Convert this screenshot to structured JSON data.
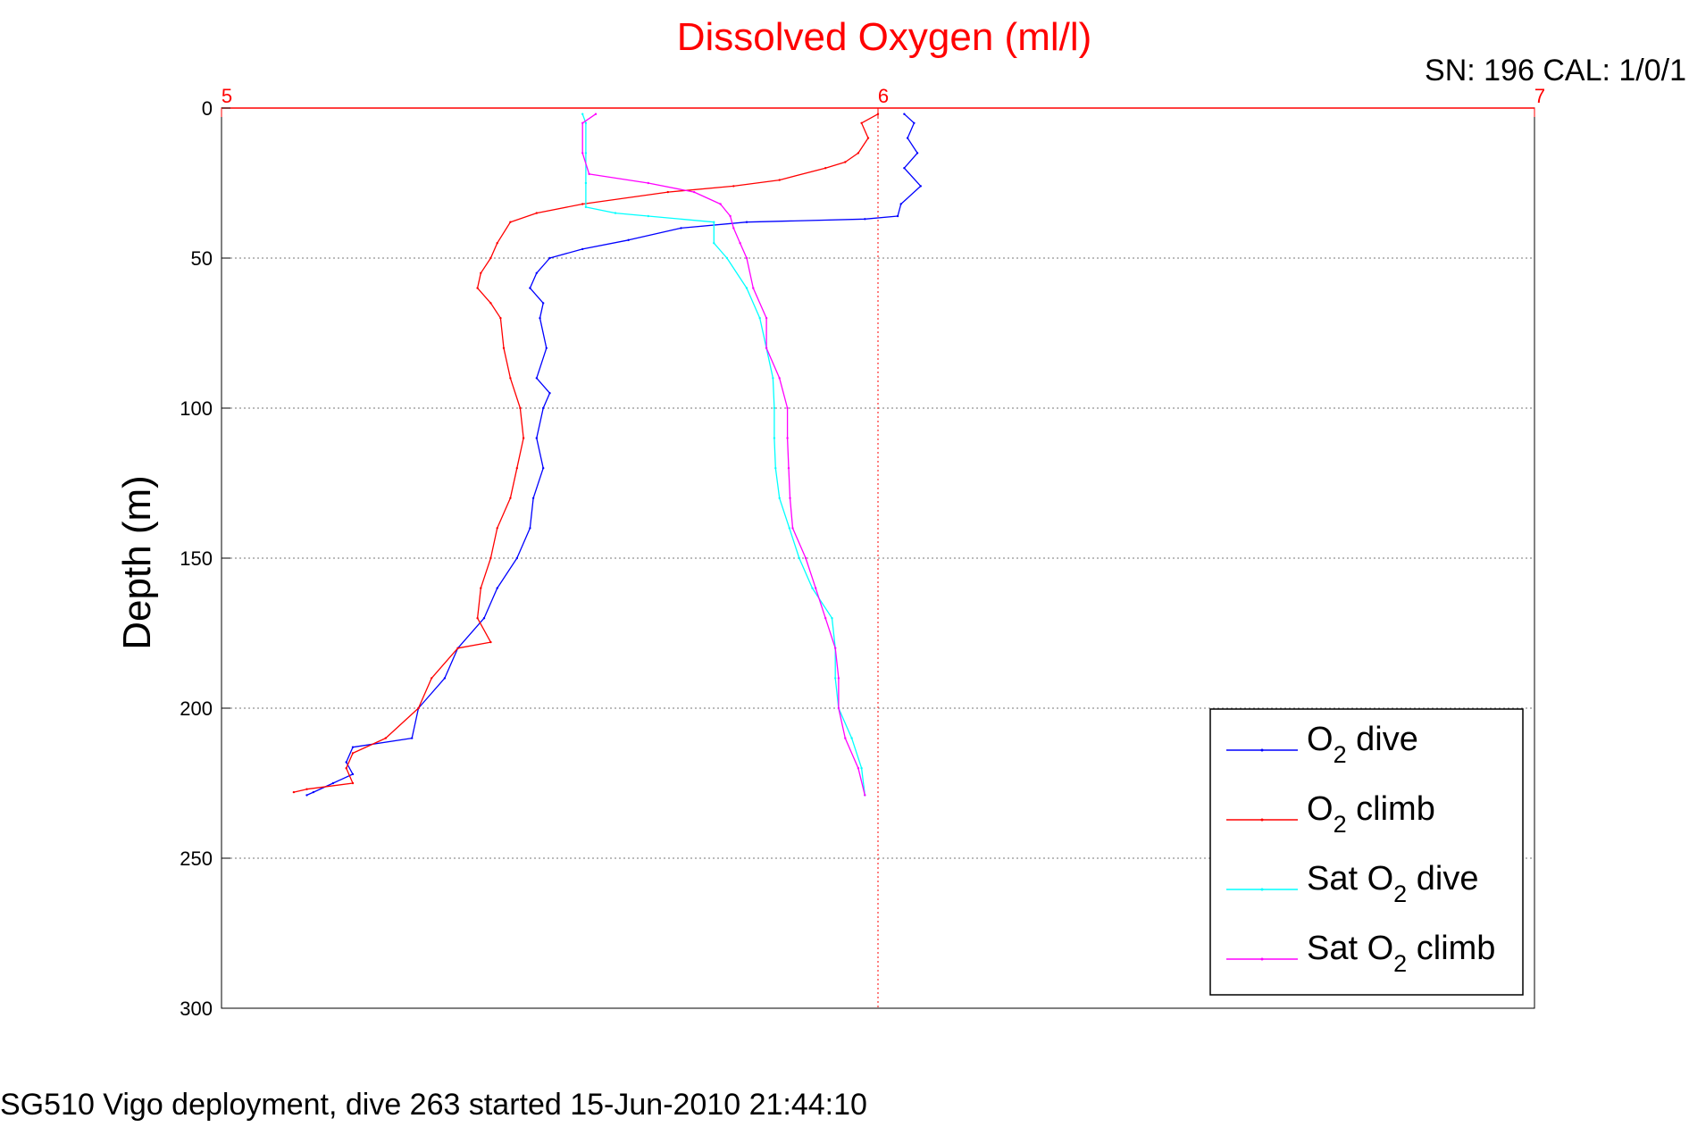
{
  "chart_data": {
    "type": "line",
    "title": "Dissolved Oxygen (ml/l)",
    "subtitle": "SN: 196  CAL: 1/0/1",
    "footer": "SG510 Vigo deployment, dive 263 started 15-Jun-2010 21:44:10",
    "xlabel": "",
    "ylabel": "Depth (m)",
    "xlim": [
      5,
      7
    ],
    "ylim": [
      0,
      300
    ],
    "y_inverted": true,
    "x_axis_position": "top",
    "x_ticks": [
      5,
      6,
      7
    ],
    "y_ticks": [
      0,
      50,
      100,
      150,
      200,
      250,
      300
    ],
    "grid": true,
    "legend_position": "bottom-right",
    "legend_label_parts": [
      {
        "prefix": "O",
        "sub": "2",
        "suffix": " dive"
      },
      {
        "prefix": "O",
        "sub": "2",
        "suffix": " climb"
      },
      {
        "prefix": "Sat O",
        "sub": "2",
        "suffix": " dive"
      },
      {
        "prefix": "Sat O",
        "sub": "2",
        "suffix": " climb"
      }
    ],
    "series": [
      {
        "color": "#0000ff",
        "points": [
          [
            6.04,
            2
          ],
          [
            6.055,
            5
          ],
          [
            6.045,
            10
          ],
          [
            6.06,
            15
          ],
          [
            6.04,
            20
          ],
          [
            6.065,
            26
          ],
          [
            6.035,
            32
          ],
          [
            6.03,
            36
          ],
          [
            5.98,
            37
          ],
          [
            5.8,
            38
          ],
          [
            5.7,
            40
          ],
          [
            5.62,
            44
          ],
          [
            5.55,
            47
          ],
          [
            5.5,
            50
          ],
          [
            5.48,
            55
          ],
          [
            5.47,
            60
          ],
          [
            5.49,
            65
          ],
          [
            5.485,
            70
          ],
          [
            5.495,
            80
          ],
          [
            5.48,
            90
          ],
          [
            5.5,
            95
          ],
          [
            5.49,
            100
          ],
          [
            5.48,
            110
          ],
          [
            5.49,
            120
          ],
          [
            5.475,
            130
          ],
          [
            5.47,
            140
          ],
          [
            5.45,
            150
          ],
          [
            5.42,
            160
          ],
          [
            5.4,
            170
          ],
          [
            5.36,
            180
          ],
          [
            5.34,
            190
          ],
          [
            5.3,
            200
          ],
          [
            5.29,
            210
          ],
          [
            5.2,
            213
          ],
          [
            5.19,
            218
          ],
          [
            5.2,
            222
          ],
          [
            5.17,
            225
          ],
          [
            5.14,
            228
          ],
          [
            5.13,
            229
          ]
        ]
      },
      {
        "color": "#ff0000",
        "points": [
          [
            6.0,
            2
          ],
          [
            5.975,
            5
          ],
          [
            5.985,
            10
          ],
          [
            5.97,
            15
          ],
          [
            5.95,
            18
          ],
          [
            5.92,
            20
          ],
          [
            5.85,
            24
          ],
          [
            5.78,
            26
          ],
          [
            5.68,
            28
          ],
          [
            5.55,
            32
          ],
          [
            5.48,
            35
          ],
          [
            5.44,
            38
          ],
          [
            5.42,
            45
          ],
          [
            5.41,
            50
          ],
          [
            5.395,
            55
          ],
          [
            5.39,
            60
          ],
          [
            5.41,
            65
          ],
          [
            5.425,
            70
          ],
          [
            5.43,
            80
          ],
          [
            5.44,
            90
          ],
          [
            5.455,
            100
          ],
          [
            5.46,
            110
          ],
          [
            5.45,
            120
          ],
          [
            5.44,
            130
          ],
          [
            5.42,
            140
          ],
          [
            5.41,
            150
          ],
          [
            5.395,
            160
          ],
          [
            5.39,
            170
          ],
          [
            5.41,
            178
          ],
          [
            5.36,
            180
          ],
          [
            5.32,
            190
          ],
          [
            5.3,
            200
          ],
          [
            5.25,
            210
          ],
          [
            5.2,
            215
          ],
          [
            5.19,
            220
          ],
          [
            5.2,
            225
          ],
          [
            5.13,
            227
          ],
          [
            5.11,
            228
          ]
        ]
      },
      {
        "color": "#00ffff",
        "points": [
          [
            5.55,
            2
          ],
          [
            5.555,
            5
          ],
          [
            5.555,
            15
          ],
          [
            5.555,
            25
          ],
          [
            5.555,
            33
          ],
          [
            5.6,
            35
          ],
          [
            5.65,
            36
          ],
          [
            5.75,
            38
          ],
          [
            5.75,
            45
          ],
          [
            5.77,
            50
          ],
          [
            5.8,
            60
          ],
          [
            5.82,
            70
          ],
          [
            5.83,
            80
          ],
          [
            5.84,
            90
          ],
          [
            5.842,
            100
          ],
          [
            5.842,
            110
          ],
          [
            5.844,
            120
          ],
          [
            5.85,
            130
          ],
          [
            5.865,
            140
          ],
          [
            5.88,
            150
          ],
          [
            5.9,
            160
          ],
          [
            5.93,
            170
          ],
          [
            5.935,
            180
          ],
          [
            5.935,
            190
          ],
          [
            5.94,
            200
          ],
          [
            5.96,
            210
          ],
          [
            5.975,
            220
          ],
          [
            5.98,
            229
          ]
        ]
      },
      {
        "color": "#ff00ff",
        "points": [
          [
            5.57,
            2
          ],
          [
            5.55,
            5
          ],
          [
            5.55,
            15
          ],
          [
            5.56,
            22
          ],
          [
            5.65,
            25
          ],
          [
            5.72,
            28
          ],
          [
            5.76,
            32
          ],
          [
            5.775,
            36
          ],
          [
            5.78,
            40
          ],
          [
            5.79,
            45
          ],
          [
            5.8,
            50
          ],
          [
            5.81,
            60
          ],
          [
            5.83,
            70
          ],
          [
            5.83,
            80
          ],
          [
            5.85,
            90
          ],
          [
            5.862,
            100
          ],
          [
            5.862,
            110
          ],
          [
            5.864,
            120
          ],
          [
            5.866,
            130
          ],
          [
            5.87,
            140
          ],
          [
            5.89,
            150
          ],
          [
            5.905,
            160
          ],
          [
            5.92,
            170
          ],
          [
            5.935,
            180
          ],
          [
            5.94,
            190
          ],
          [
            5.94,
            200
          ],
          [
            5.95,
            210
          ],
          [
            5.97,
            220
          ],
          [
            5.98,
            229
          ]
        ]
      }
    ]
  }
}
